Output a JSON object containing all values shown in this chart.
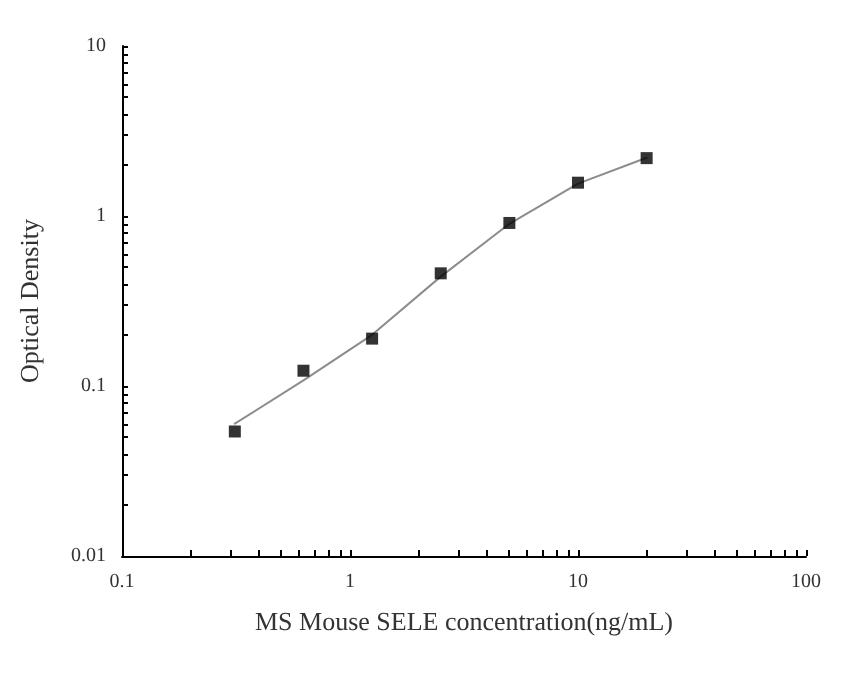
{
  "chart_data": {
    "type": "scatter",
    "xlabel": "MS Mouse SELE concentration(ng/mL)",
    "ylabel": "Optical Density",
    "log": "xy",
    "grid": false,
    "marker": "square",
    "xlim": [
      0.1,
      100
    ],
    "ylim": [
      0.01,
      10
    ],
    "xticks": [
      0.1,
      {
        "value": 0.2,
        "label": null
      },
      {
        "value": 0.3,
        "label": null
      },
      {
        "value": 0.4,
        "label": null
      },
      {
        "value": 0.5,
        "label": null
      },
      {
        "value": 0.6,
        "label": null
      },
      {
        "value": 0.7,
        "label": null
      },
      {
        "value": 0.8,
        "label": null
      },
      {
        "value": 0.9,
        "label": null
      },
      1,
      {
        "value": 2,
        "label": null
      },
      {
        "value": 3,
        "label": null
      },
      {
        "value": 4,
        "label": null
      },
      {
        "value": 5,
        "label": null
      },
      {
        "value": 6,
        "label": null
      },
      {
        "value": 7,
        "label": null
      },
      {
        "value": 8,
        "label": null
      },
      {
        "value": 9,
        "label": null
      },
      10,
      {
        "value": 20,
        "label": null
      },
      {
        "value": 30,
        "label": null
      },
      {
        "value": 40,
        "label": null
      },
      {
        "value": 50,
        "label": null
      },
      {
        "value": 60,
        "label": null
      },
      {
        "value": 70,
        "label": null
      },
      {
        "value": 80,
        "label": null
      },
      {
        "value": 90,
        "label": null
      },
      100
    ],
    "yticks": [
      0.01,
      {
        "value": 0.02,
        "label": null
      },
      {
        "value": 0.03,
        "label": null
      },
      {
        "value": 0.04,
        "label": null
      },
      {
        "value": 0.05,
        "label": null
      },
      {
        "value": 0.06,
        "label": null
      },
      {
        "value": 0.07,
        "label": null
      },
      {
        "value": 0.08,
        "label": null
      },
      {
        "value": 0.09,
        "label": null
      },
      0.1,
      {
        "value": 0.2,
        "label": null
      },
      {
        "value": 0.3,
        "label": null
      },
      {
        "value": 0.4,
        "label": null
      },
      {
        "value": 0.5,
        "label": null
      },
      {
        "value": 0.6,
        "label": null
      },
      {
        "value": 0.7,
        "label": null
      },
      {
        "value": 0.8,
        "label": null
      },
      {
        "value": 0.9,
        "label": null
      },
      1,
      {
        "value": 2,
        "label": null
      },
      {
        "value": 3,
        "label": null
      },
      {
        "value": 4,
        "label": null
      },
      {
        "value": 5,
        "label": null
      },
      {
        "value": 6,
        "label": null
      },
      {
        "value": 7,
        "label": null
      },
      {
        "value": 8,
        "label": null
      },
      {
        "value": 9,
        "label": null
      },
      10
    ],
    "series": [
      {
        "type": "line",
        "marker": "none",
        "line_style": "solid",
        "color": "#8c8c8c",
        "x": [
          0.3125,
          0.625,
          1.25,
          2.5,
          5,
          10,
          20
        ],
        "values": [
          0.06,
          0.108,
          0.2,
          0.44,
          0.9,
          1.55,
          2.2
        ]
      },
      {
        "color": "#000000",
        "x": [
          0.3125,
          0.625,
          1.25,
          2.5,
          5,
          10,
          20
        ],
        "values": [
          0.054,
          0.123,
          0.19,
          0.46,
          0.91,
          1.57,
          2.19
        ]
      }
    ]
  }
}
